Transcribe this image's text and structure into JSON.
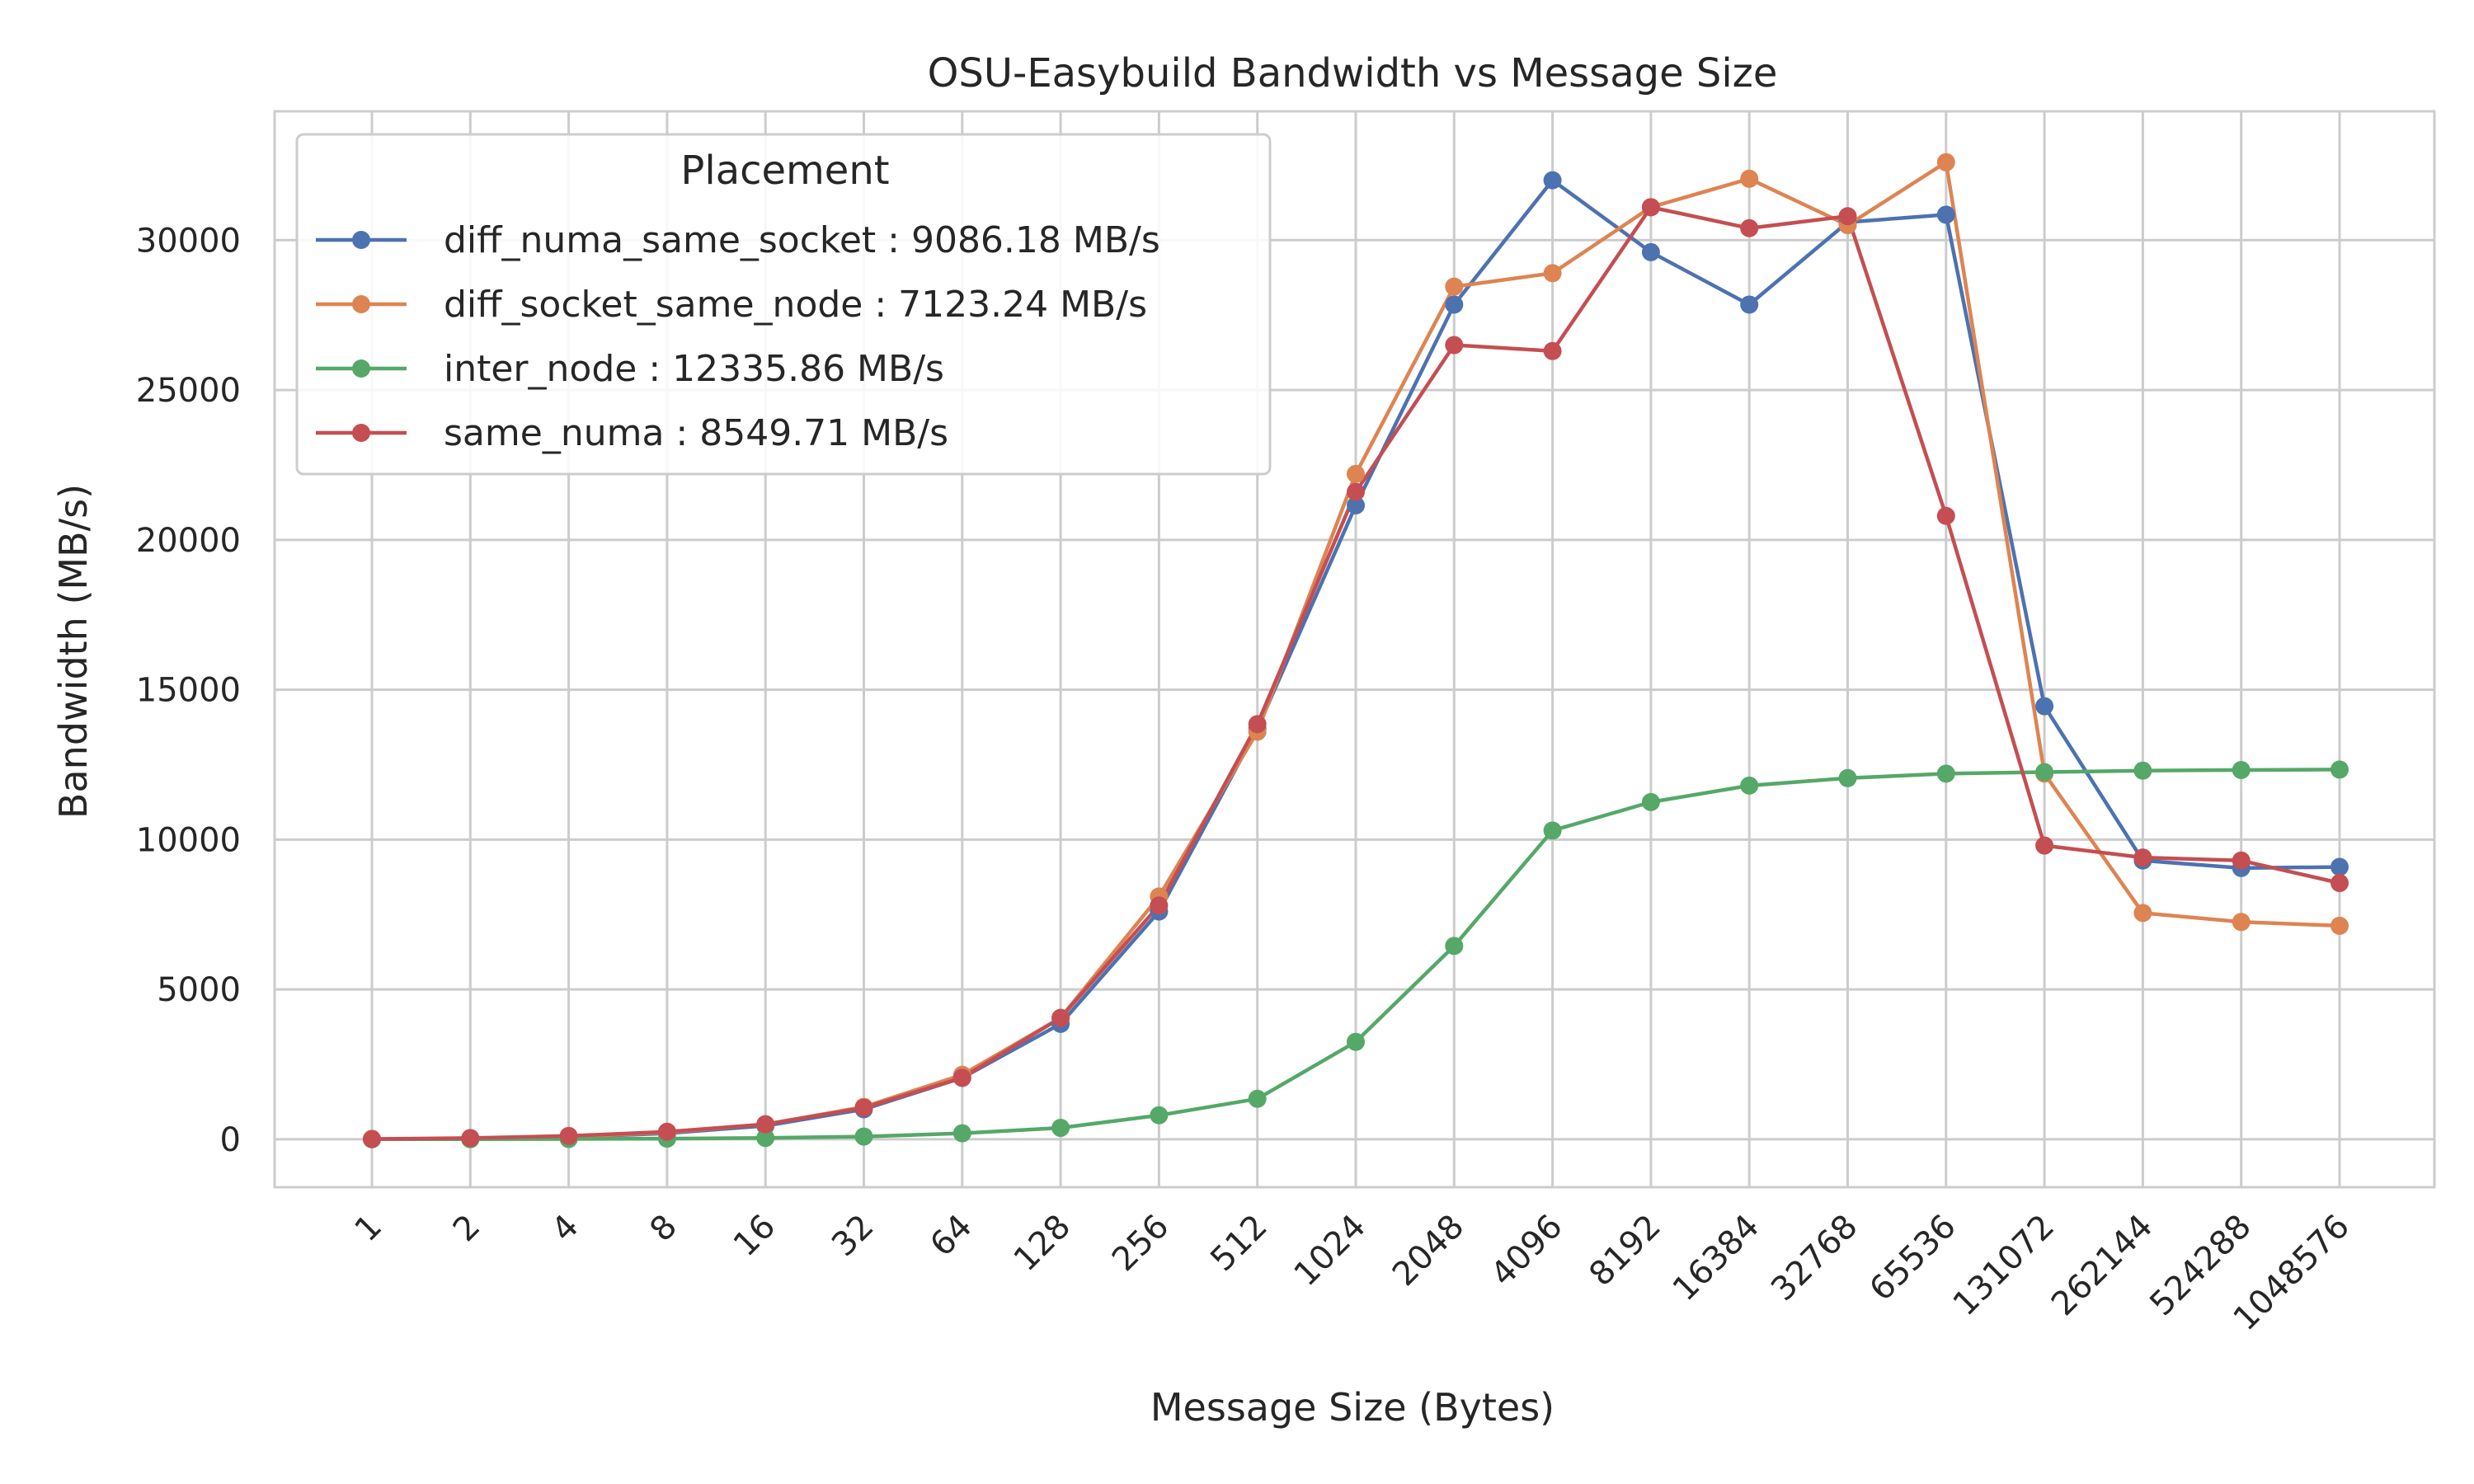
{
  "chart_data": {
    "type": "line",
    "title": "OSU-Easybuild Bandwidth vs Message Size",
    "xlabel": "Message Size (Bytes)",
    "ylabel": "Bandwidth (MB/s)",
    "categories": [
      "1",
      "2",
      "4",
      "8",
      "16",
      "32",
      "64",
      "128",
      "256",
      "512",
      "1024",
      "2048",
      "4096",
      "8192",
      "16384",
      "32768",
      "65536",
      "131072",
      "262144",
      "524288",
      "1048576"
    ],
    "yticks": [
      "0",
      "5000",
      "10000",
      "15000",
      "20000",
      "25000",
      "30000"
    ],
    "ylim": [
      -1600,
      34300
    ],
    "grid": true,
    "legend": {
      "title": "Placement",
      "placement": "upper-left"
    },
    "series": [
      {
        "name": "diff_numa_same_socket : 9086.18 MB/s",
        "color": "#4C72B0",
        "values": [
          2,
          7,
          70,
          200,
          450,
          1000,
          2050,
          3850,
          7600,
          13700,
          21150,
          27850,
          32000,
          29600,
          27850,
          30600,
          30850,
          14450,
          9300,
          9050,
          9086
        ]
      },
      {
        "name": "diff_socket_same_node : 7123.24 MB/s",
        "color": "#DD8452",
        "values": [
          3,
          8,
          80,
          230,
          500,
          1080,
          2150,
          4050,
          8100,
          13600,
          22200,
          28450,
          28900,
          31100,
          32050,
          30500,
          32600,
          12200,
          7550,
          7250,
          7123
        ]
      },
      {
        "name": "inter_node : 12335.86 MB/s",
        "color": "#55A868",
        "values": [
          1,
          2,
          8,
          20,
          45,
          90,
          200,
          380,
          800,
          1350,
          3250,
          6450,
          10300,
          11250,
          11800,
          12050,
          12200,
          12250,
          12300,
          12320,
          12336
        ]
      },
      {
        "name": "same_numa : 8549.71 MB/s",
        "color": "#C44E52",
        "values": [
          10,
          40,
          110,
          250,
          500,
          1050,
          2050,
          4050,
          7800,
          13850,
          21600,
          26500,
          26300,
          31100,
          30400,
          30800,
          20800,
          9800,
          9400,
          9300,
          8550
        ]
      }
    ]
  }
}
